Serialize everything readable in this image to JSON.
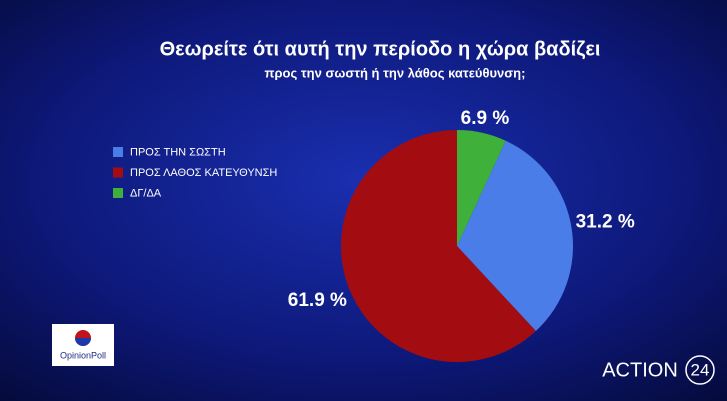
{
  "chart_data": {
    "type": "pie",
    "title": "Θεωρείτε ότι αυτή την περίοδο η χώρα βαδίζει",
    "subtitle": "προς την σωστή ή την λάθος κατεύθυνση;",
    "series": [
      {
        "name": "ΠΡΟΣ ΤΗΝ ΣΩΣΤΗ",
        "color": "#4a7de8",
        "values": [
          31.2
        ],
        "value_labels": [
          "31.2 %"
        ]
      },
      {
        "name": "ΠΡΟΣ ΛΑΘΟΣ ΚΑΤΕΥΘΥΝΣΗ",
        "color": "#a30d12",
        "values": [
          61.9
        ],
        "value_labels": [
          "61.9 %"
        ]
      },
      {
        "name": "ΔΓ/ΔΑ",
        "color": "#3fb03a",
        "values": [
          6.9
        ],
        "value_labels": [
          "6.9 %"
        ]
      }
    ],
    "legend": "left"
  },
  "branding": {
    "poll": "OpinionPoll",
    "channel": "ACTION",
    "channel_number": "24"
  }
}
